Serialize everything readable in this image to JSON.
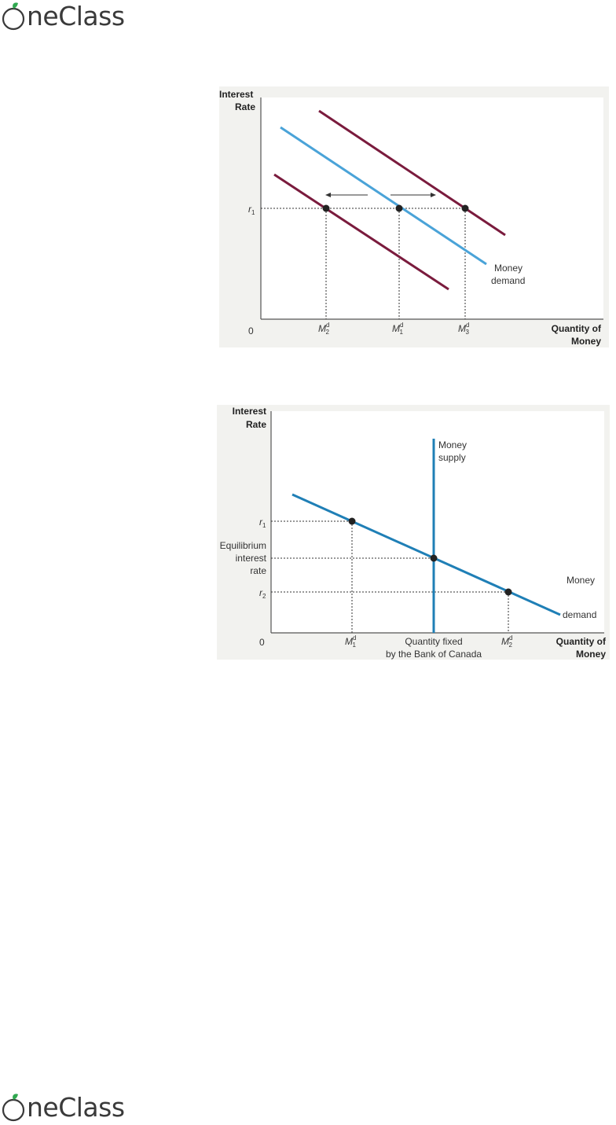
{
  "brand": {
    "name": "OneClass",
    "text_tail": "neClass",
    "leaf_color": "#2fa84f"
  },
  "figure1": {
    "y_axis_label": [
      "Interest",
      "Rate"
    ],
    "x_axis_label": [
      "Quantity of",
      "Money"
    ],
    "origin": "0",
    "r_label": "r",
    "r_sub": "1",
    "m_labels": [
      {
        "base": "M",
        "sup": "d",
        "sub": "2"
      },
      {
        "base": "M",
        "sup": "d",
        "sub": "1"
      },
      {
        "base": "M",
        "sup": "d",
        "sub": "3"
      }
    ],
    "curve_label": [
      "Money",
      "demand"
    ],
    "colors": {
      "shifted": "#7a1b3d",
      "original": "#4aa3d8"
    }
  },
  "figure2": {
    "y_axis_label": [
      "Interest",
      "Rate"
    ],
    "x_axis_label": [
      "Quantity of",
      "Money"
    ],
    "origin": "0",
    "r1": {
      "base": "r",
      "sub": "1"
    },
    "r2": {
      "base": "r",
      "sub": "2"
    },
    "eq_label": [
      "Equilibrium",
      "interest",
      "rate"
    ],
    "m1": {
      "base": "M",
      "sup": "d",
      "sub": "1"
    },
    "m2": {
      "base": "M",
      "sup": "d",
      "sub": "2"
    },
    "quantity_fixed": [
      "Quantity fixed",
      "by the Bank of Canada"
    ],
    "supply_label": [
      "Money",
      "supply"
    ],
    "demand_label": [
      "Money",
      "demand"
    ],
    "colors": {
      "curve": "#1f7fb6"
    }
  }
}
